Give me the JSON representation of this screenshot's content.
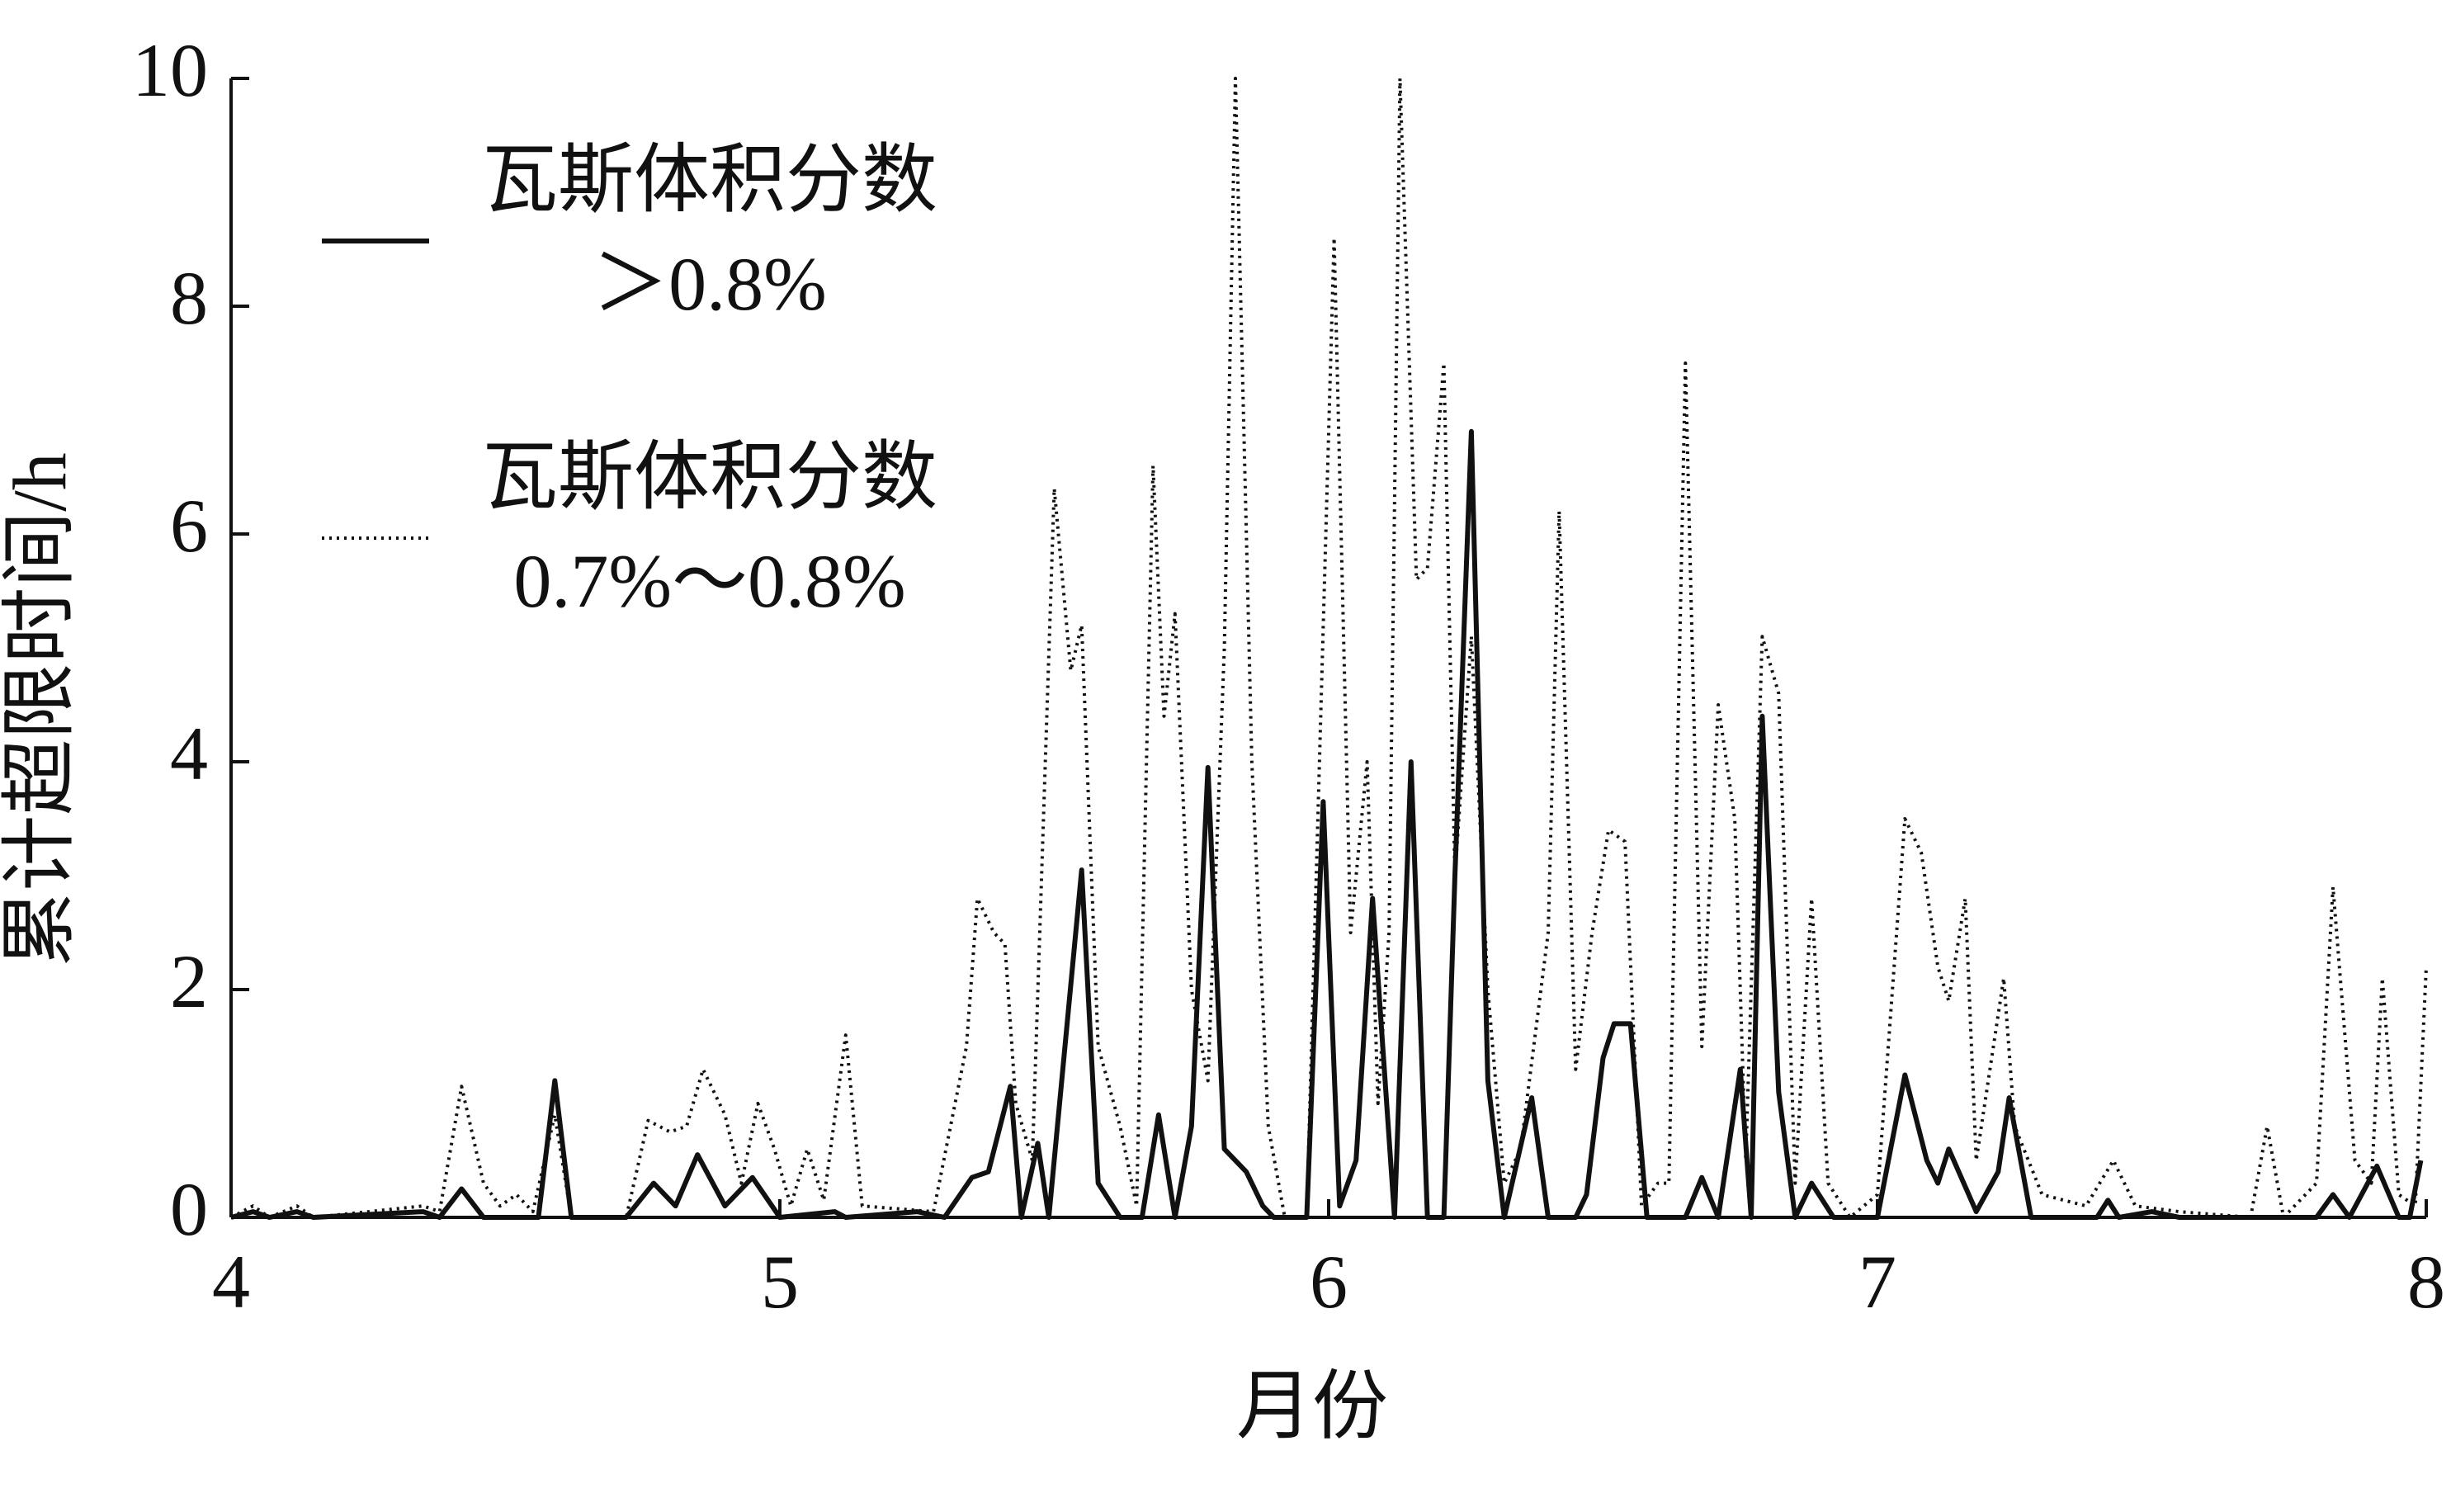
{
  "chart_data": {
    "type": "line",
    "xlabel": "月份",
    "ylabel": "累计超限时间/h",
    "xlim": [
      4,
      8
    ],
    "ylim": [
      0,
      10
    ],
    "xticks": [
      4,
      5,
      6,
      7,
      8
    ],
    "yticks": [
      0,
      2,
      4,
      6,
      8,
      10
    ],
    "grid": false,
    "legend": "upper left",
    "series": [
      {
        "name": "瓦斯体积分数\n＞0.8%",
        "color": "#111111",
        "dash": "solid",
        "x": [
          4.0,
          4.04,
          4.07,
          4.12,
          4.15,
          4.35,
          4.38,
          4.42,
          4.46,
          4.56,
          4.59,
          4.62,
          4.72,
          4.77,
          4.81,
          4.85,
          4.9,
          4.95,
          5.0,
          5.1,
          5.12,
          5.25,
          5.3,
          5.35,
          5.38,
          5.42,
          5.44,
          5.47,
          5.49,
          5.55,
          5.58,
          5.62,
          5.66,
          5.69,
          5.72,
          5.75,
          5.78,
          5.81,
          5.85,
          5.88,
          5.9,
          5.96,
          5.99,
          6.02,
          6.05,
          6.08,
          6.12,
          6.15,
          6.18,
          6.21,
          6.23,
          6.26,
          6.29,
          6.32,
          6.37,
          6.4,
          6.45,
          6.47,
          6.5,
          6.52,
          6.55,
          6.58,
          6.65,
          6.68,
          6.71,
          6.75,
          6.77,
          6.79,
          6.82,
          6.85,
          6.88,
          6.92,
          7.0,
          7.05,
          7.09,
          7.11,
          7.13,
          7.18,
          7.22,
          7.24,
          7.28,
          7.4,
          7.42,
          7.44,
          7.5,
          7.55,
          7.8,
          7.83,
          7.86,
          7.91,
          7.95,
          7.97,
          7.99
        ],
        "values": [
          0,
          0.05,
          0,
          0.05,
          0,
          0.05,
          0,
          0.25,
          0,
          0,
          1.2,
          0,
          0,
          0.3,
          0.1,
          0.55,
          0.1,
          0.35,
          0,
          0.05,
          0,
          0.05,
          0,
          0.35,
          0.4,
          1.15,
          0,
          0.65,
          0,
          3.05,
          0.3,
          0,
          0,
          0.9,
          0,
          0.8,
          3.95,
          0.6,
          0.4,
          0.1,
          0,
          0,
          3.65,
          0.1,
          0.5,
          2.8,
          0,
          4.0,
          0,
          0,
          3.0,
          6.9,
          1.2,
          0,
          1.05,
          0,
          0,
          0.2,
          1.4,
          1.7,
          1.7,
          0,
          0,
          0.35,
          0,
          1.3,
          0,
          4.4,
          1.1,
          0,
          0.3,
          0,
          0,
          1.25,
          0.5,
          0.3,
          0.6,
          0.05,
          0.4,
          1.05,
          0,
          0,
          0.15,
          0,
          0.05,
          0,
          0,
          0.2,
          0,
          0.45,
          0,
          0,
          0.5
        ]
      },
      {
        "name": "瓦斯体积分数\n0.7%～0.8%",
        "color": "#111111",
        "dash": "dotted",
        "x": [
          4.0,
          4.04,
          4.07,
          4.12,
          4.15,
          4.35,
          4.38,
          4.42,
          4.46,
          4.49,
          4.52,
          4.55,
          4.59,
          4.62,
          4.72,
          4.76,
          4.8,
          4.83,
          4.86,
          4.9,
          4.93,
          4.96,
          4.99,
          5.02,
          5.05,
          5.08,
          5.12,
          5.15,
          5.28,
          5.34,
          5.36,
          5.39,
          5.41,
          5.43,
          5.46,
          5.5,
          5.53,
          5.55,
          5.58,
          5.62,
          5.65,
          5.68,
          5.7,
          5.72,
          5.75,
          5.78,
          5.81,
          5.83,
          5.86,
          5.89,
          5.92,
          5.96,
          6.01,
          6.04,
          6.07,
          6.09,
          6.11,
          6.13,
          6.16,
          6.18,
          6.21,
          6.23,
          6.26,
          6.29,
          6.32,
          6.35,
          6.4,
          6.42,
          6.45,
          6.48,
          6.51,
          6.54,
          6.57,
          6.6,
          6.62,
          6.65,
          6.68,
          6.71,
          6.74,
          6.76,
          6.79,
          6.82,
          6.85,
          6.88,
          6.91,
          6.95,
          7.0,
          7.05,
          7.08,
          7.11,
          7.13,
          7.16,
          7.18,
          7.23,
          7.25,
          7.3,
          7.38,
          7.43,
          7.47,
          7.55,
          7.68,
          7.71,
          7.74,
          7.8,
          7.83,
          7.87,
          7.9,
          7.92,
          7.95,
          7.98,
          8.0
        ],
        "values": [
          0,
          0.1,
          0,
          0.1,
          0,
          0.1,
          0.05,
          1.15,
          0.3,
          0.1,
          0.2,
          0.05,
          0.9,
          0,
          0,
          0.85,
          0.75,
          0.8,
          1.3,
          0.9,
          0.3,
          1.0,
          0.6,
          0.1,
          0.6,
          0.15,
          1.6,
          0.1,
          0.05,
          1.5,
          2.8,
          2.5,
          2.4,
          1.0,
          0.5,
          6.4,
          4.8,
          5.2,
          1.5,
          0.8,
          0.1,
          6.6,
          4.4,
          5.3,
          2.0,
          1.2,
          5.0,
          10,
          4.0,
          0.8,
          0,
          0,
          8.6,
          2.5,
          4.0,
          1.0,
          2.5,
          10,
          5.6,
          5.7,
          7.5,
          3.0,
          5.1,
          2.0,
          0.3,
          0.6,
          2.5,
          6.2,
          1.3,
          2.5,
          3.4,
          3.3,
          0.1,
          0.3,
          0.3,
          7.5,
          1.5,
          4.5,
          3.5,
          0.5,
          5.1,
          4.6,
          0.3,
          2.8,
          0.3,
          0,
          0.2,
          3.5,
          3.2,
          2.2,
          1.9,
          2.8,
          0.5,
          2.1,
          0.8,
          0.2,
          0.1,
          0.5,
          0.1,
          0.05,
          0,
          0.8,
          0,
          0.3,
          2.9,
          0.5,
          0.3,
          2.1,
          0.2,
          0.1,
          2.2
        ]
      }
    ]
  }
}
